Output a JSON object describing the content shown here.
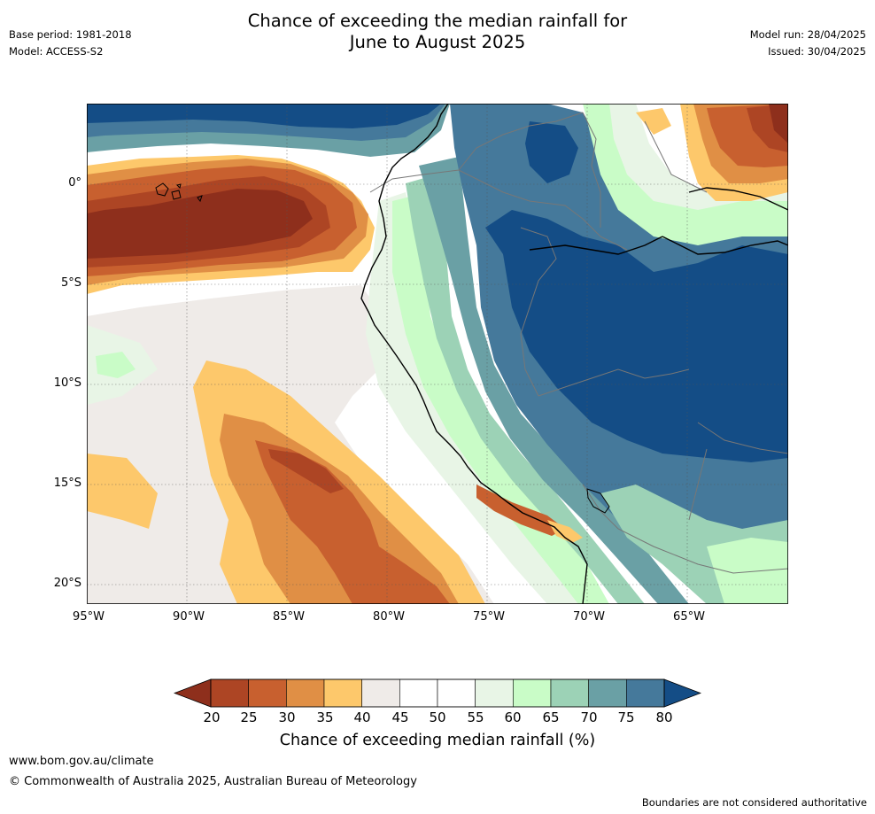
{
  "header": {
    "title_line1": "Chance of exceeding the median rainfall for",
    "title_line2": "June to August 2025",
    "base_period": "Base period: 1981-2018",
    "model": "Model: ACCESS-S2",
    "model_run": "Model run: 28/04/2025",
    "issued": "Issued: 30/04/2025"
  },
  "map": {
    "lat_ticks": [
      "0°",
      "5°S",
      "10°S",
      "15°S",
      "20°S"
    ],
    "lon_ticks": [
      "95°W",
      "90°W",
      "85°W",
      "80°W",
      "75°W",
      "70°W",
      "65°W"
    ],
    "colors": {
      "c15": "#8e2f1c",
      "c20": "#ad4524",
      "c25": "#c8602f",
      "c30": "#e08f45",
      "c35": "#fdc86b",
      "c40": "#efebe8",
      "c45": "#ffffff",
      "c55": "#e8f5e6",
      "c60": "#c9fcc7",
      "c65": "#9cd2b6",
      "c70": "#6aa0a5",
      "c75": "#45799b",
      "c80": "#144d86"
    }
  },
  "colorbar": {
    "ticks": [
      "20",
      "25",
      "30",
      "35",
      "40",
      "45",
      "50",
      "55",
      "60",
      "65",
      "70",
      "75",
      "80"
    ],
    "colors": [
      "#ad4524",
      "#c8602f",
      "#e08f45",
      "#fdc86b",
      "#efebe8",
      "#ffffff",
      "#ffffff",
      "#e8f5e6",
      "#c9fcc7",
      "#9cd2b6",
      "#6aa0a5",
      "#45799b"
    ],
    "low_extend_color": "#8e2f1c",
    "high_extend_color": "#144d86",
    "label": "Chance of exceeding median rainfall (%)"
  },
  "footer": {
    "website": "www.bom.gov.au/climate",
    "copyright": "© Commonwealth of Australia 2025, Australian Bureau of Meteorology",
    "disclaimer": "Boundaries are not considered authoritative"
  }
}
